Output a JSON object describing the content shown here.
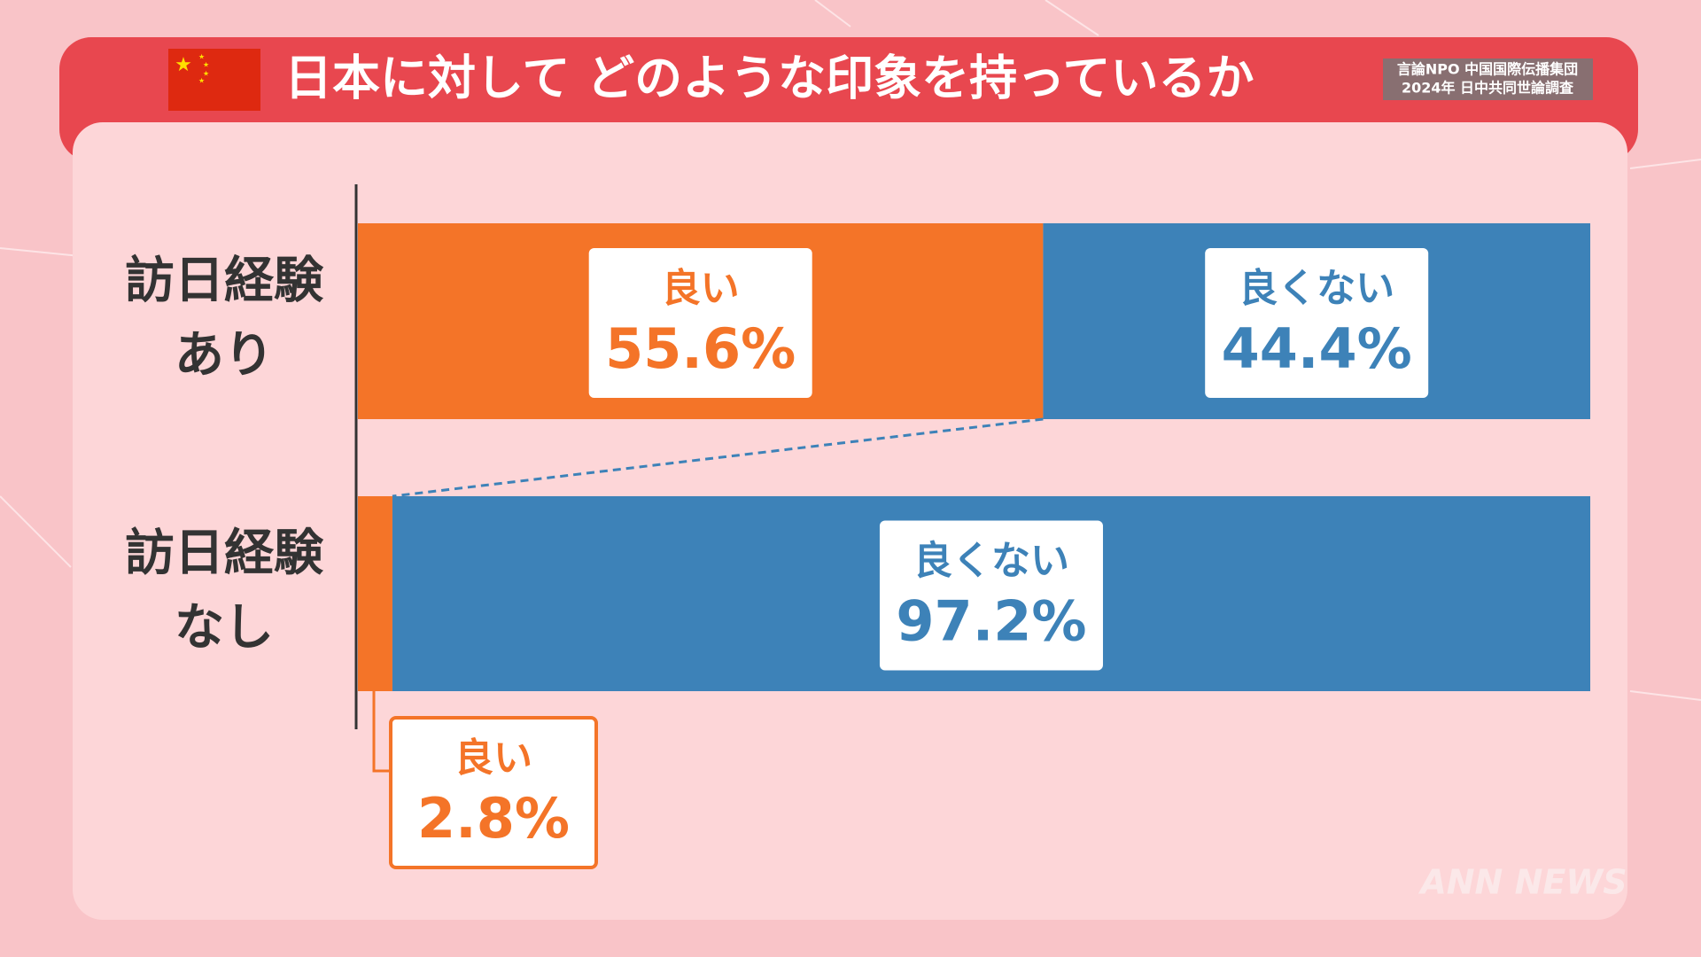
{
  "chart_data": {
    "type": "stacked-bar-horizontal",
    "title": "日本に対して どのような印象を持っているか",
    "source": [
      "言論NPO 中国国際伝播集団",
      "2024年 日中共同世論調査"
    ],
    "logo": "ANN NEWS",
    "categories": [
      [
        "訪日経験",
        "あり"
      ],
      [
        "訪日経験",
        "なし"
      ]
    ],
    "series": [
      {
        "name": "良い",
        "color": "#f47428",
        "values": [
          55.6,
          2.8
        ],
        "value_labels": [
          "55.6%",
          "2.8%"
        ]
      },
      {
        "name": "良くない",
        "color": "#3d82b8",
        "values": [
          44.4,
          97.2
        ],
        "value_labels": [
          "44.4%",
          "97.2%"
        ]
      }
    ],
    "xlim": [
      0,
      100
    ]
  }
}
